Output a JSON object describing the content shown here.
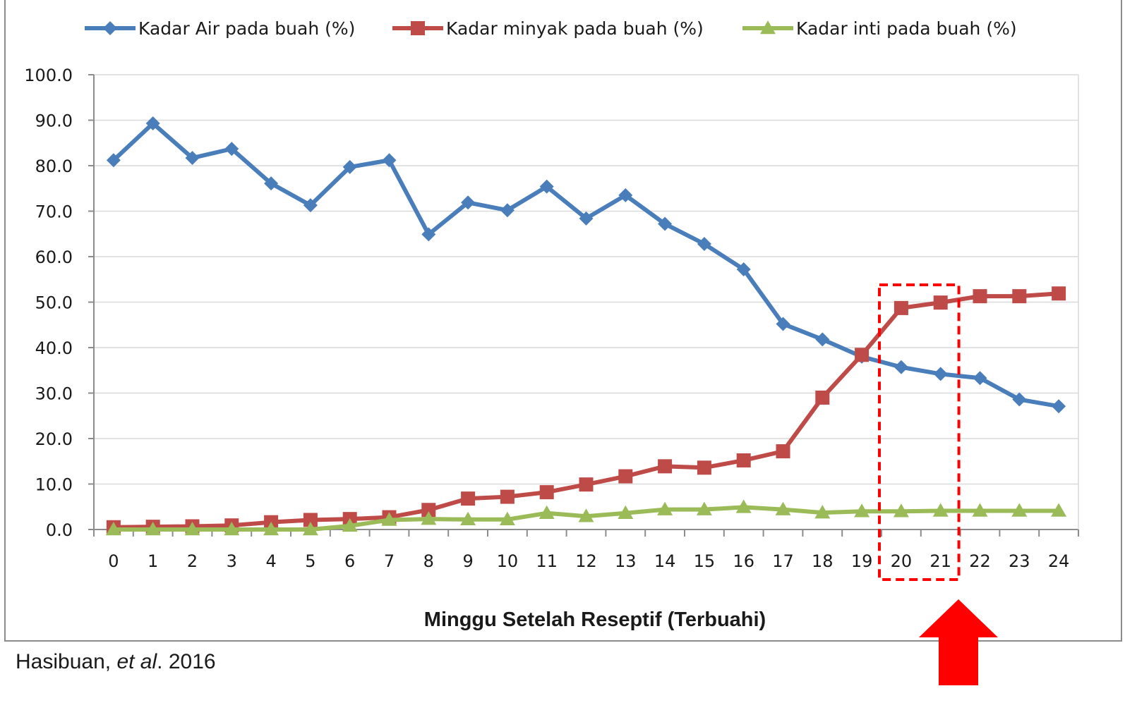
{
  "chart_data": {
    "type": "line",
    "title": "",
    "xlabel": "Minggu Setelah Reseptif (Terbuahi)",
    "ylabel": "",
    "x": [
      0,
      1,
      2,
      3,
      4,
      5,
      6,
      7,
      8,
      9,
      10,
      11,
      12,
      13,
      14,
      15,
      16,
      17,
      18,
      19,
      20,
      21,
      22,
      23,
      24
    ],
    "x_tick_labels": [
      "0",
      "1",
      "2",
      "3",
      "4",
      "5",
      "6",
      "7",
      "8",
      "9",
      "10",
      "11",
      "12",
      "13",
      "14",
      "15",
      "16",
      "17",
      "18",
      "19",
      "20",
      "21",
      "22",
      "23",
      "24"
    ],
    "ylim": [
      0,
      100
    ],
    "y_tick_labels": [
      "0.0",
      "10.0",
      "20.0",
      "30.0",
      "40.0",
      "50.0",
      "60.0",
      "70.0",
      "80.0",
      "90.0",
      "100.0"
    ],
    "grid": true,
    "legend_position": "top",
    "series": [
      {
        "name": "Kadar Air pada buah (%)",
        "color": "#4a7ebb",
        "marker": "diamond",
        "values": [
          81.2,
          89.3,
          81.7,
          83.7,
          76.1,
          71.3,
          79.7,
          81.2,
          64.9,
          71.9,
          70.2,
          75.4,
          68.4,
          73.5,
          67.2,
          62.8,
          57.2,
          45.2,
          41.8,
          38.0,
          35.7,
          34.2,
          33.3,
          28.6,
          27.1
        ]
      },
      {
        "name": "Kadar minyak  pada buah (%)",
        "color": "#be4b48",
        "marker": "square",
        "values": [
          0.5,
          0.6,
          0.7,
          0.9,
          1.6,
          2.1,
          2.3,
          2.7,
          4.3,
          6.8,
          7.2,
          8.2,
          9.9,
          11.7,
          13.9,
          13.6,
          15.2,
          17.2,
          29.0,
          38.4,
          48.7,
          49.9,
          51.3,
          51.3,
          51.9
        ]
      },
      {
        "name": "Kadar inti pada buah (%)",
        "color": "#9bbb59",
        "marker": "triangle",
        "values": [
          0.0,
          0.0,
          0.0,
          0.0,
          0.0,
          0.0,
          0.8,
          2.1,
          2.3,
          2.2,
          2.2,
          3.6,
          2.9,
          3.6,
          4.4,
          4.4,
          4.9,
          4.4,
          3.7,
          4.0,
          4.0,
          4.1,
          4.1,
          4.1,
          4.1
        ]
      }
    ],
    "annotations": {
      "highlight_box": {
        "x_range": [
          20,
          21
        ],
        "color": "#ff0000",
        "style": "dashed"
      },
      "arrow": {
        "color": "#ff0000",
        "direction": "up",
        "points_to_x": 21
      }
    },
    "grid_color": "#d9d9d9",
    "axis_color": "#8c8c8c"
  },
  "citation": {
    "author": "Hasibuan, ",
    "etal": "et al",
    "year": ". 2016"
  }
}
